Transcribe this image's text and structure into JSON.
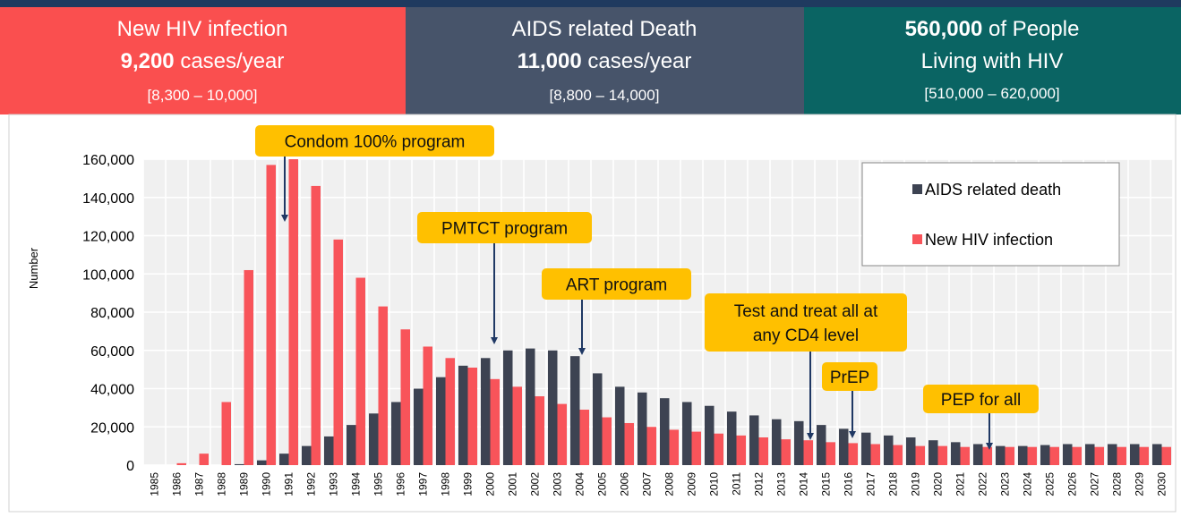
{
  "header": {
    "boxes": [
      {
        "title": "New HIV infection",
        "value": "9,200",
        "unit": "cases/year",
        "range": "[8,300 – 10,000]"
      },
      {
        "title": "AIDS related Death",
        "value": "11,000",
        "unit": "cases/year",
        "range": "[8,800 – 14,000]"
      },
      {
        "value": "560,000",
        "unit": "of People",
        "subtitle": "Living with HIV",
        "range": "[510,000 – 620,000]"
      }
    ]
  },
  "chart_data": {
    "type": "bar",
    "y_label": "Number",
    "categories": [
      "1985",
      "1986",
      "1987",
      "1988",
      "1989",
      "1990",
      "1991",
      "1992",
      "1993",
      "1994",
      "1995",
      "1996",
      "1997",
      "1998",
      "1999",
      "2000",
      "2001",
      "2002",
      "2003",
      "2004",
      "2005",
      "2006",
      "2007",
      "2008",
      "2009",
      "2010",
      "2011",
      "2012",
      "2013",
      "2014",
      "2015",
      "2016",
      "2017",
      "2018",
      "2019",
      "2020",
      "2021",
      "2022",
      "2023",
      "2024",
      "2025",
      "2026",
      "2027",
      "2028",
      "2029",
      "2030"
    ],
    "series": [
      {
        "name": "AIDS related death",
        "color": "#3d4352",
        "values": [
          0,
          0,
          0,
          0,
          500,
          2500,
          6000,
          10000,
          15000,
          21000,
          27000,
          33000,
          40000,
          46000,
          52000,
          56000,
          60000,
          61000,
          60000,
          57000,
          48000,
          41000,
          38000,
          35000,
          33000,
          31000,
          28000,
          26000,
          24000,
          23000,
          21000,
          19000,
          17000,
          15500,
          14500,
          13000,
          12000,
          11000,
          10000,
          10000,
          10500,
          11000,
          11000,
          11000,
          11000,
          11000
        ]
      },
      {
        "name": "New HIV infection",
        "color": "#f8545a",
        "values": [
          0,
          1000,
          6000,
          33000,
          102000,
          157000,
          160000,
          146000,
          118000,
          98000,
          83000,
          71000,
          62000,
          56000,
          51000,
          45000,
          41000,
          36000,
          32000,
          29000,
          25000,
          22000,
          20000,
          18500,
          17500,
          16500,
          15500,
          14500,
          13500,
          13000,
          12000,
          11500,
          11000,
          10500,
          10000,
          10000,
          9500,
          9500,
          9500,
          9500,
          9500,
          9500,
          9500,
          9500,
          9500,
          9500
        ]
      }
    ],
    "ylim": [
      0,
      160000
    ],
    "yticks": [
      0,
      {
        "value": 20000,
        "label": "20,000"
      },
      {
        "value": 40000,
        "label": "40,000"
      },
      {
        "value": 60000,
        "label": "60,000"
      },
      {
        "value": 80000,
        "label": "80,000"
      },
      {
        "value": 100000,
        "label": "100,000"
      },
      {
        "value": 120000,
        "label": "120,000"
      },
      {
        "value": 140000,
        "label": "140,000"
      },
      {
        "value": 160000,
        "label": "160,000"
      }
    ],
    "grid": true,
    "legend": "upper right",
    "annotations": [
      [
        "Condom 100% program"
      ],
      [
        "PMTCT program"
      ],
      [
        "ART program"
      ],
      [
        "Test and treat all at",
        "any CD4 level"
      ],
      [
        "PrEP"
      ],
      [
        "PEP for all"
      ]
    ]
  }
}
